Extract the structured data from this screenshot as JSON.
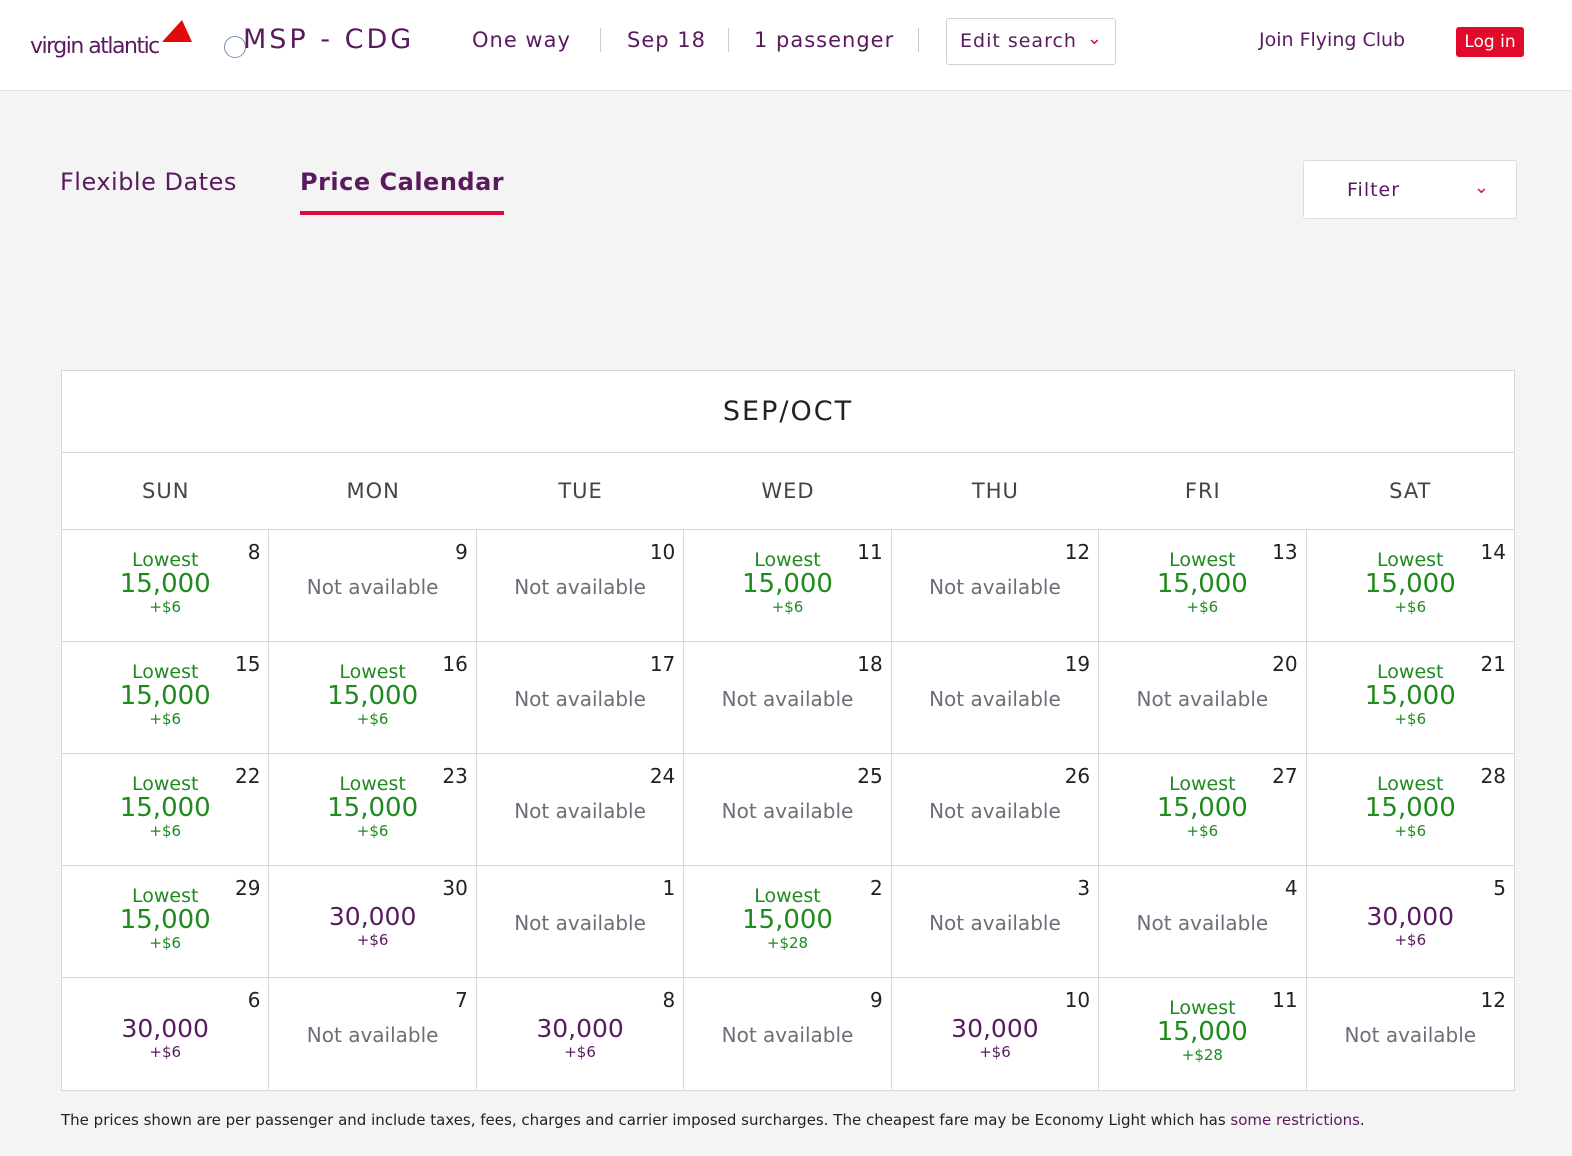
{
  "header": {
    "logo_text": "virgin atlantic",
    "route": "MSP - CDG",
    "trip_type": "One way",
    "date": "Sep 18",
    "passengers": "1 passenger",
    "edit_search": "Edit search",
    "join": "Join Flying Club",
    "login": "Log in"
  },
  "tabs": [
    {
      "label": "Flexible Dates"
    },
    {
      "label": "Price Calendar",
      "active": true
    }
  ],
  "filter": {
    "label": "Filter"
  },
  "colors": {
    "brand": "#5a1a5e",
    "accent": "#e10a3c",
    "lowest": "#1f8a1f"
  },
  "calendar": {
    "month": "SEP/OCT",
    "days": [
      "SUN",
      "MON",
      "TUE",
      "WED",
      "THU",
      "FRI",
      "SAT"
    ],
    "lowest_label": "Lowest",
    "na_label": "Not available",
    "cells": [
      {
        "day": "8",
        "status": "lowest",
        "price": "15,000",
        "tax": "+$6"
      },
      {
        "day": "9",
        "status": "na"
      },
      {
        "day": "10",
        "status": "na"
      },
      {
        "day": "11",
        "status": "lowest",
        "price": "15,000",
        "tax": "+$6"
      },
      {
        "day": "12",
        "status": "na"
      },
      {
        "day": "13",
        "status": "lowest",
        "price": "15,000",
        "tax": "+$6"
      },
      {
        "day": "14",
        "status": "lowest",
        "price": "15,000",
        "tax": "+$6"
      },
      {
        "day": "15",
        "status": "lowest",
        "price": "15,000",
        "tax": "+$6"
      },
      {
        "day": "16",
        "status": "lowest",
        "price": "15,000",
        "tax": "+$6"
      },
      {
        "day": "17",
        "status": "na"
      },
      {
        "day": "18",
        "status": "na"
      },
      {
        "day": "19",
        "status": "na"
      },
      {
        "day": "20",
        "status": "na"
      },
      {
        "day": "21",
        "status": "lowest",
        "price": "15,000",
        "tax": "+$6"
      },
      {
        "day": "22",
        "status": "lowest",
        "price": "15,000",
        "tax": "+$6"
      },
      {
        "day": "23",
        "status": "lowest",
        "price": "15,000",
        "tax": "+$6"
      },
      {
        "day": "24",
        "status": "na"
      },
      {
        "day": "25",
        "status": "na"
      },
      {
        "day": "26",
        "status": "na"
      },
      {
        "day": "27",
        "status": "lowest",
        "price": "15,000",
        "tax": "+$6"
      },
      {
        "day": "28",
        "status": "lowest",
        "price": "15,000",
        "tax": "+$6"
      },
      {
        "day": "29",
        "status": "lowest",
        "price": "15,000",
        "tax": "+$6"
      },
      {
        "day": "30",
        "status": "price",
        "price": "30,000",
        "tax": "+$6"
      },
      {
        "day": "1",
        "status": "na"
      },
      {
        "day": "2",
        "status": "lowest",
        "price": "15,000",
        "tax": "+$28"
      },
      {
        "day": "3",
        "status": "na"
      },
      {
        "day": "4",
        "status": "na"
      },
      {
        "day": "5",
        "status": "price",
        "price": "30,000",
        "tax": "+$6"
      },
      {
        "day": "6",
        "status": "price",
        "price": "30,000",
        "tax": "+$6"
      },
      {
        "day": "7",
        "status": "na"
      },
      {
        "day": "8",
        "status": "price",
        "price": "30,000",
        "tax": "+$6"
      },
      {
        "day": "9",
        "status": "na"
      },
      {
        "day": "10",
        "status": "price",
        "price": "30,000",
        "tax": "+$6"
      },
      {
        "day": "11",
        "status": "lowest",
        "price": "15,000",
        "tax": "+$28"
      },
      {
        "day": "12",
        "status": "na"
      }
    ]
  },
  "footer": {
    "text": "The prices shown are per passenger and include taxes, fees, charges and carrier imposed surcharges. The cheapest fare may be Economy Light which has ",
    "link": "some restrictions",
    "end": "."
  }
}
